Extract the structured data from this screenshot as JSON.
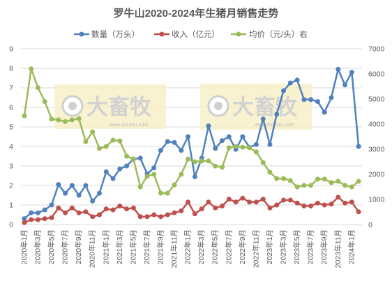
{
  "chart_data": {
    "type": "line",
    "title": "罗牛山2020-2024年生猪月销售走势",
    "x_tick_labels": [
      "2020年1月",
      "2020年3月",
      "2020年5月",
      "2020年7月",
      "2020年9月",
      "2020年11月",
      "2021年1月",
      "2021年3月",
      "2021年5月",
      "2021年7月",
      "2021年9月",
      "2021年11月",
      "2022年1月",
      "2022年3月",
      "2022年5月",
      "2022年7月",
      "2022年9月",
      "2022年11月",
      "2023年1月",
      "2023年3月",
      "2023年5月",
      "2023年7月",
      "2023年9月",
      "2023年11月",
      "2024年1月"
    ],
    "series": [
      {
        "name": "数量（万头）",
        "color": "#4F81BD",
        "secondary_axis": false,
        "values": [
          0.3,
          0.6,
          0.6,
          0.75,
          1.0,
          2.05,
          1.6,
          2.0,
          1.5,
          2.0,
          1.2,
          1.6,
          2.7,
          2.35,
          2.85,
          3.0,
          3.35,
          3.4,
          2.6,
          2.9,
          3.8,
          4.25,
          4.2,
          3.8,
          4.5,
          2.45,
          3.4,
          5.05,
          3.9,
          4.3,
          4.5,
          3.85,
          4.5,
          3.95,
          4.1,
          5.4,
          4.1,
          5.65,
          6.85,
          7.25,
          7.4,
          6.4,
          6.4,
          6.3,
          5.75,
          6.5,
          7.95,
          7.15,
          7.8,
          4.0
        ]
      },
      {
        "name": "收入（亿元）",
        "color": "#C0504D",
        "secondary_axis": false,
        "values": [
          0.1,
          0.25,
          0.25,
          0.3,
          0.35,
          0.85,
          0.6,
          0.85,
          0.6,
          0.65,
          0.4,
          0.5,
          0.8,
          0.75,
          0.95,
          0.8,
          0.85,
          0.4,
          0.4,
          0.5,
          0.4,
          0.5,
          0.6,
          0.7,
          1.15,
          0.55,
          0.8,
          1.15,
          0.85,
          0.95,
          1.3,
          1.15,
          1.35,
          1.15,
          1.15,
          1.3,
          0.85,
          1.0,
          1.25,
          1.25,
          1.1,
          0.95,
          0.95,
          1.1,
          1.0,
          1.05,
          1.4,
          1.1,
          1.15,
          0.65
        ]
      },
      {
        "name": "均价（元/头）右",
        "color": "#9BBB59",
        "secondary_axis": true,
        "values": [
          4330,
          6200,
          5450,
          4900,
          4200,
          4170,
          4100,
          4170,
          4220,
          3300,
          3690,
          3030,
          3110,
          3360,
          3330,
          2720,
          2610,
          1500,
          1920,
          2000,
          1250,
          1250,
          1580,
          2000,
          2610,
          2500,
          2530,
          2530,
          2330,
          2280,
          3060,
          3110,
          3080,
          3060,
          2890,
          2470,
          2080,
          1830,
          1830,
          1750,
          1500,
          1560,
          1560,
          1810,
          1810,
          1670,
          1720,
          1560,
          1500,
          1720
        ]
      }
    ],
    "y_left": {
      "range": [
        0,
        9
      ],
      "ticks": [
        0,
        1,
        2,
        3,
        4,
        5,
        6,
        7,
        8,
        9
      ]
    },
    "y_right": {
      "range": [
        0,
        7000
      ],
      "ticks": [
        0,
        1000,
        2000,
        3000,
        4000,
        5000,
        6000,
        7000
      ]
    },
    "grid": true,
    "legend": "top"
  },
  "watermark": {
    "brand": "大畜牧",
    "url": "www.dxumu.com"
  }
}
